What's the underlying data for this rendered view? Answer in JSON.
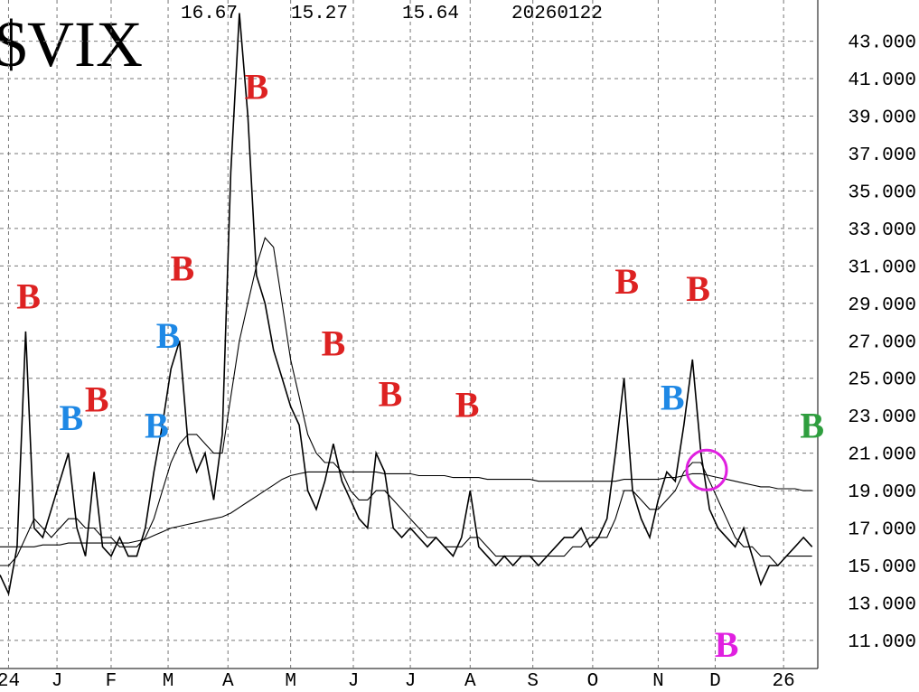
{
  "chart_data": {
    "type": "line",
    "title": "$VIX",
    "header_values": [
      "16.67",
      "15.27",
      "15.64",
      "20260122"
    ],
    "x": [
      0,
      3,
      6,
      9,
      12,
      15,
      18,
      21,
      24,
      27,
      30,
      33,
      36,
      39,
      42,
      45,
      48,
      51,
      54,
      57,
      60,
      63,
      66,
      69,
      72,
      75,
      78,
      81,
      84,
      87,
      90,
      93,
      96,
      99,
      102,
      105,
      108,
      111,
      114,
      117,
      120,
      123,
      126,
      129,
      132,
      135,
      138,
      141,
      144,
      147,
      150,
      153,
      156,
      159,
      162,
      165,
      168,
      171,
      174,
      177,
      180,
      183,
      186,
      189,
      192,
      195,
      198,
      201,
      204,
      207,
      210,
      213,
      216,
      219,
      222,
      225,
      228,
      231,
      234,
      237,
      240,
      243,
      246,
      249,
      252,
      255,
      258,
      261,
      264,
      267,
      270,
      273,
      276,
      279,
      282,
      285
    ],
    "series": [
      {
        "color": "#000000",
        "values": [
          14.5,
          13.5,
          16,
          27.5,
          17,
          16.5,
          18,
          19.5,
          21,
          17,
          15.5,
          20,
          16,
          15.5,
          16.5,
          15.5,
          15.5,
          17,
          20,
          22.5,
          25.5,
          27,
          21.5,
          20,
          21,
          18.5,
          22,
          36,
          44.5,
          39,
          30.5,
          29,
          26.5,
          25,
          23.5,
          22.5,
          19,
          18,
          19.5,
          21.5,
          19.5,
          18.5,
          17.5,
          17,
          21,
          20,
          17,
          16.5,
          17,
          16.5,
          16,
          16.5,
          16,
          15.5,
          16.5,
          19,
          16,
          15.5,
          15,
          15.5,
          15,
          15.5,
          15.5,
          15,
          15.5,
          16,
          16.5,
          16.5,
          17,
          16,
          16.5,
          17.5,
          21,
          25,
          19,
          17.5,
          16.5,
          18.5,
          20,
          19.5,
          22.5,
          26,
          21,
          18,
          17,
          16.5,
          16,
          17,
          15.5,
          14,
          15,
          15,
          15.5,
          16,
          16.5,
          16
        ]
      },
      {
        "color": "#000000",
        "values": [
          15,
          15,
          15.5,
          16.5,
          17.5,
          17,
          16.5,
          17,
          17.5,
          17.5,
          17,
          17,
          16.5,
          16.5,
          16,
          16,
          16,
          16.5,
          17.5,
          19,
          20.5,
          21.5,
          22,
          22,
          21.5,
          21,
          21,
          24,
          27,
          29,
          31,
          32.5,
          32,
          29,
          26,
          24,
          22,
          21,
          20.5,
          20.5,
          20,
          19,
          18.5,
          18.5,
          19,
          19,
          18.5,
          18,
          17.5,
          17,
          16.5,
          16.5,
          16,
          16,
          16,
          16.5,
          16.5,
          16,
          15.5,
          15.5,
          15.5,
          15.5,
          15.5,
          15.5,
          15.5,
          15.5,
          15.5,
          16,
          16,
          16.5,
          16.5,
          16.5,
          17.5,
          19,
          19,
          18.5,
          18,
          18,
          18.5,
          19,
          20,
          20.5,
          20.5,
          19.5,
          18.5,
          17.5,
          16.5,
          16,
          16,
          15.5,
          15.5,
          15,
          15.5,
          15.5,
          15.5,
          15.5
        ]
      },
      {
        "color": "#000000",
        "values": [
          16,
          16,
          16,
          16,
          16,
          16.1,
          16.1,
          16.1,
          16.2,
          16.2,
          16.2,
          16.2,
          16.2,
          16.2,
          16.2,
          16.2,
          16.3,
          16.4,
          16.6,
          16.8,
          17,
          17.1,
          17.2,
          17.3,
          17.4,
          17.5,
          17.6,
          17.8,
          18.1,
          18.4,
          18.7,
          19,
          19.3,
          19.6,
          19.8,
          19.9,
          20,
          20,
          20,
          20,
          20,
          20,
          20,
          20,
          20,
          19.9,
          19.9,
          19.9,
          19.9,
          19.8,
          19.8,
          19.8,
          19.8,
          19.7,
          19.7,
          19.7,
          19.7,
          19.6,
          19.6,
          19.6,
          19.6,
          19.6,
          19.6,
          19.5,
          19.5,
          19.5,
          19.5,
          19.5,
          19.5,
          19.5,
          19.5,
          19.5,
          19.5,
          19.6,
          19.6,
          19.6,
          19.6,
          19.6,
          19.7,
          19.7,
          19.8,
          19.9,
          19.9,
          19.8,
          19.7,
          19.6,
          19.5,
          19.4,
          19.3,
          19.2,
          19.2,
          19.1,
          19.1,
          19.1,
          19.0,
          19.0
        ]
      }
    ],
    "xlim": [
      0,
      287
    ],
    "xticks": [
      {
        "value": 3,
        "label": "24"
      },
      {
        "value": 20,
        "label": "J"
      },
      {
        "value": 39,
        "label": "F"
      },
      {
        "value": 59,
        "label": "M"
      },
      {
        "value": 80,
        "label": "A"
      },
      {
        "value": 102,
        "label": "M"
      },
      {
        "value": 124,
        "label": "J"
      },
      {
        "value": 144,
        "label": "J"
      },
      {
        "value": 165,
        "label": "A"
      },
      {
        "value": 187,
        "label": "S"
      },
      {
        "value": 208,
        "label": "O"
      },
      {
        "value": 231,
        "label": "N"
      },
      {
        "value": 251,
        "label": "D"
      },
      {
        "value": 275,
        "label": "26"
      }
    ],
    "ylim": [
      9.5,
      45.2
    ],
    "yticks": [
      {
        "value": 11,
        "label": "11.000"
      },
      {
        "value": 13,
        "label": "13.000"
      },
      {
        "value": 15,
        "label": "15.000"
      },
      {
        "value": 17,
        "label": "17.000"
      },
      {
        "value": 19,
        "label": "19.000"
      },
      {
        "value": 21,
        "label": "21.000"
      },
      {
        "value": 23,
        "label": "23.000"
      },
      {
        "value": 25,
        "label": "25.000"
      },
      {
        "value": 27,
        "label": "27.000"
      },
      {
        "value": 29,
        "label": "29.000"
      },
      {
        "value": 31,
        "label": "31.000"
      },
      {
        "value": 33,
        "label": "33.000"
      },
      {
        "value": 35,
        "label": "35.000"
      },
      {
        "value": 37,
        "label": "37.000"
      },
      {
        "value": 39,
        "label": "39.000"
      },
      {
        "value": 41,
        "label": "41.000"
      },
      {
        "value": 43,
        "label": "43.000"
      }
    ],
    "grid": true,
    "annotations": [
      {
        "text": "B",
        "color": "#dd2222",
        "x": 10,
        "y": 29.4
      },
      {
        "text": "B",
        "color": "#1e88e5",
        "x": 25,
        "y": 22.9
      },
      {
        "text": "B",
        "color": "#dd2222",
        "x": 34,
        "y": 23.9
      },
      {
        "text": "B",
        "color": "#1e88e5",
        "x": 55,
        "y": 22.5
      },
      {
        "text": "B",
        "color": "#1e88e5",
        "x": 59,
        "y": 27.3
      },
      {
        "text": "B",
        "color": "#dd2222",
        "x": 64,
        "y": 30.9
      },
      {
        "text": "B",
        "color": "#dd2222",
        "x": 90,
        "y": 40.6
      },
      {
        "text": "B",
        "color": "#dd2222",
        "x": 117,
        "y": 26.9
      },
      {
        "text": "B",
        "color": "#dd2222",
        "x": 137,
        "y": 24.2
      },
      {
        "text": "B",
        "color": "#dd2222",
        "x": 164,
        "y": 23.6
      },
      {
        "text": "B",
        "color": "#dd2222",
        "x": 220,
        "y": 30.2
      },
      {
        "text": "B",
        "color": "#1e88e5",
        "x": 236,
        "y": 24.0
      },
      {
        "text": "B",
        "color": "#dd2222",
        "x": 245,
        "y": 29.8
      },
      {
        "text": "B",
        "color": "#2e9e3e",
        "x": 285,
        "y": 22.5
      },
      {
        "text": "B",
        "color": "#e020e0",
        "x": 255,
        "y": 10.8
      }
    ],
    "circle": {
      "x": 248,
      "y": 20.1,
      "color": "#e020e0"
    }
  }
}
